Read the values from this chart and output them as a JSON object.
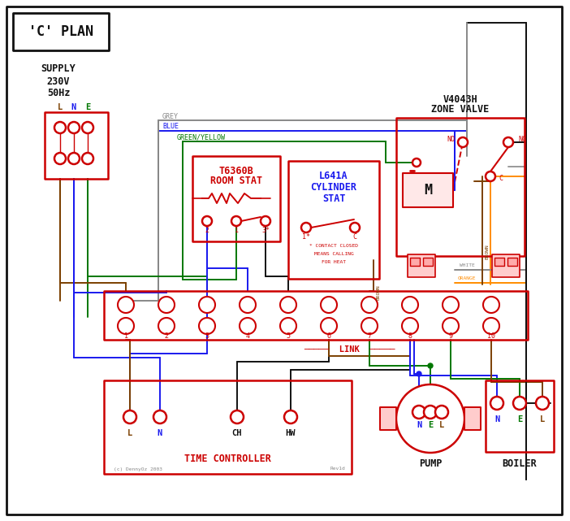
{
  "title": "'C' PLAN",
  "bg": "#ffffff",
  "red": "#cc0000",
  "blue": "#1a1aee",
  "green": "#007700",
  "grey": "#888888",
  "brown": "#7B3F00",
  "orange": "#FF8C00",
  "black": "#111111",
  "supply_lines": [
    "SUPPLY",
    "230V",
    "50Hz"
  ],
  "lne": [
    "L",
    "N",
    "E"
  ],
  "zone_title": [
    "V4043H",
    "ZONE VALVE"
  ],
  "room_stat": [
    "T6360B",
    "ROOM STAT"
  ],
  "cyl_stat": [
    "L641A",
    "CYLINDER",
    "STAT"
  ],
  "contact_note": [
    "* CONTACT CLOSED",
    "MEANS CALLING",
    "FOR HEAT"
  ],
  "tc_label": "TIME CONTROLLER",
  "tc_terms": [
    "L",
    "N",
    "CH",
    "HW"
  ],
  "pump_label": "PUMP",
  "boiler_label": "BOILER",
  "link_label": "LINK",
  "copyright": "(c) DennyOz 2003",
  "rev": "Rev1d",
  "grey_label": "GREY",
  "blue_label": "BLUE",
  "gy_label": "GREEN/YELLOW",
  "brown_label": "BROWN",
  "white_label": "WHITE",
  "orange_label": "ORANGE"
}
